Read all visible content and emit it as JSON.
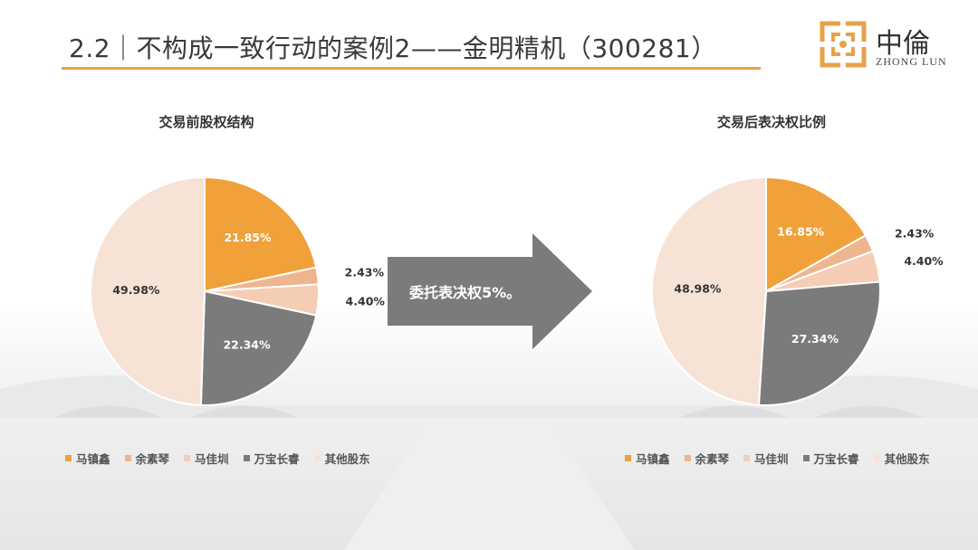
{
  "slide": {
    "title": "2.2｜不构成一致行动的案例2——金明精机（300281）",
    "arrow_text": "委托表决权5%。"
  },
  "logo": {
    "cn": "中倫",
    "en": "ZHONG LUN",
    "accent": "#e6a24a"
  },
  "colors": [
    "#f0a13a",
    "#eeb58f",
    "#f5cdb4",
    "#7b7b7b",
    "#f6e3d6"
  ],
  "legend_labels": [
    "马镇鑫",
    "余素琴",
    "马佳圳",
    "万宝长睿",
    "其他股东"
  ],
  "chart_data": [
    {
      "type": "pie",
      "title": "交易前股权结构",
      "categories": [
        "马镇鑫",
        "余素琴",
        "马佳圳",
        "万宝长睿",
        "其他股东"
      ],
      "values": [
        21.85,
        2.43,
        4.4,
        22.34,
        49.98
      ],
      "labels": [
        "21.85%",
        "2.43%",
        "4.40%",
        "22.34%",
        "49.98%"
      ],
      "legend": "bottom"
    },
    {
      "type": "pie",
      "title": "交易后表决权比例",
      "categories": [
        "马镇鑫",
        "余素琴",
        "马佳圳",
        "万宝长睿",
        "其他股东"
      ],
      "values": [
        16.85,
        2.43,
        4.4,
        27.34,
        48.98
      ],
      "labels": [
        "16.85%",
        "2.43%",
        "4.40%",
        "27.34%",
        "48.98%"
      ],
      "legend": "bottom"
    }
  ]
}
